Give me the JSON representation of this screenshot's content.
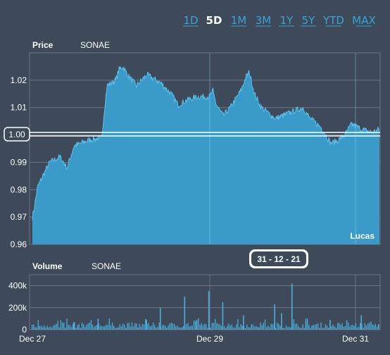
{
  "range_buttons": [
    "1D",
    "5D",
    "1M",
    "3M",
    "1Y",
    "5Y",
    "YTD",
    "MAX"
  ],
  "active_range": "5D",
  "price_panel": {
    "title": "Price",
    "symbol": "SONAE",
    "watermark": "Lucas"
  },
  "volume_panel": {
    "title": "Volume",
    "symbol": "SONAE"
  },
  "crosshair": {
    "price_label": "1.00",
    "date_label": "31 - 12 - 21"
  },
  "colors": {
    "background": "#3e4a59",
    "area_fill": "#3a9bc9",
    "area_line": "#5cc3ef",
    "grid": "#6b7786",
    "bar": "#4aaedc",
    "accent": "#3aa3d5"
  },
  "chart_data": [
    {
      "type": "area",
      "title": "Price",
      "series": [
        {
          "name": "SONAE"
        }
      ],
      "ylim": [
        0.96,
        1.03
      ],
      "yticks": [
        "0.96",
        "0.97",
        "0.98",
        "0.99",
        "1.00",
        "1.01",
        "1.02"
      ],
      "anchors": [
        [
          0,
          0.97
        ],
        [
          0.005,
          0.973
        ],
        [
          0.015,
          0.981
        ],
        [
          0.03,
          0.985
        ],
        [
          0.05,
          0.99
        ],
        [
          0.08,
          0.992
        ],
        [
          0.1,
          0.988
        ],
        [
          0.12,
          0.996
        ],
        [
          0.16,
          0.998
        ],
        [
          0.2,
          0.999
        ],
        [
          0.205,
          1.006
        ],
        [
          0.215,
          1.018
        ],
        [
          0.24,
          1.02
        ],
        [
          0.25,
          1.024
        ],
        [
          0.26,
          1.025
        ],
        [
          0.28,
          1.021
        ],
        [
          0.3,
          1.018
        ],
        [
          0.33,
          1.022
        ],
        [
          0.37,
          1.019
        ],
        [
          0.4,
          1.015
        ],
        [
          0.42,
          1.011
        ],
        [
          0.45,
          1.013
        ],
        [
          0.48,
          1.014
        ],
        [
          0.51,
          1.014
        ],
        [
          0.52,
          1.016
        ],
        [
          0.53,
          1.011
        ],
        [
          0.55,
          1.007
        ],
        [
          0.57,
          1.01
        ],
        [
          0.6,
          1.016
        ],
        [
          0.615,
          1.021
        ],
        [
          0.625,
          1.023
        ],
        [
          0.64,
          1.015
        ],
        [
          0.66,
          1.01
        ],
        [
          0.7,
          1.006
        ],
        [
          0.74,
          1.008
        ],
        [
          0.78,
          1.01
        ],
        [
          0.8,
          1.006
        ],
        [
          0.83,
          1.003
        ],
        [
          0.86,
          0.997
        ],
        [
          0.88,
          0.998
        ],
        [
          0.9,
          1.0
        ],
        [
          0.92,
          1.004
        ],
        [
          0.95,
          1.002
        ],
        [
          0.98,
          1.001
        ],
        [
          1.0,
          1.002
        ]
      ]
    },
    {
      "type": "bar",
      "title": "Volume",
      "series": [
        {
          "name": "SONAE"
        }
      ],
      "ylim": [
        0,
        500000
      ],
      "yticks": [
        "0",
        "200k",
        "400k"
      ],
      "x_labels": [
        "Dec 27",
        "Dec 29",
        "Dec 31"
      ],
      "spikes": [
        [
          0.12,
          70000
        ],
        [
          0.19,
          100000
        ],
        [
          0.33,
          90000
        ],
        [
          0.37,
          200000
        ],
        [
          0.44,
          300000
        ],
        [
          0.475,
          90000
        ],
        [
          0.51,
          350000
        ],
        [
          0.55,
          250000
        ],
        [
          0.61,
          130000
        ],
        [
          0.7,
          230000
        ],
        [
          0.72,
          150000
        ],
        [
          0.75,
          420000
        ],
        [
          0.79,
          80000
        ],
        [
          0.86,
          90000
        ],
        [
          0.95,
          130000
        ],
        [
          1.0,
          50000
        ]
      ]
    }
  ]
}
